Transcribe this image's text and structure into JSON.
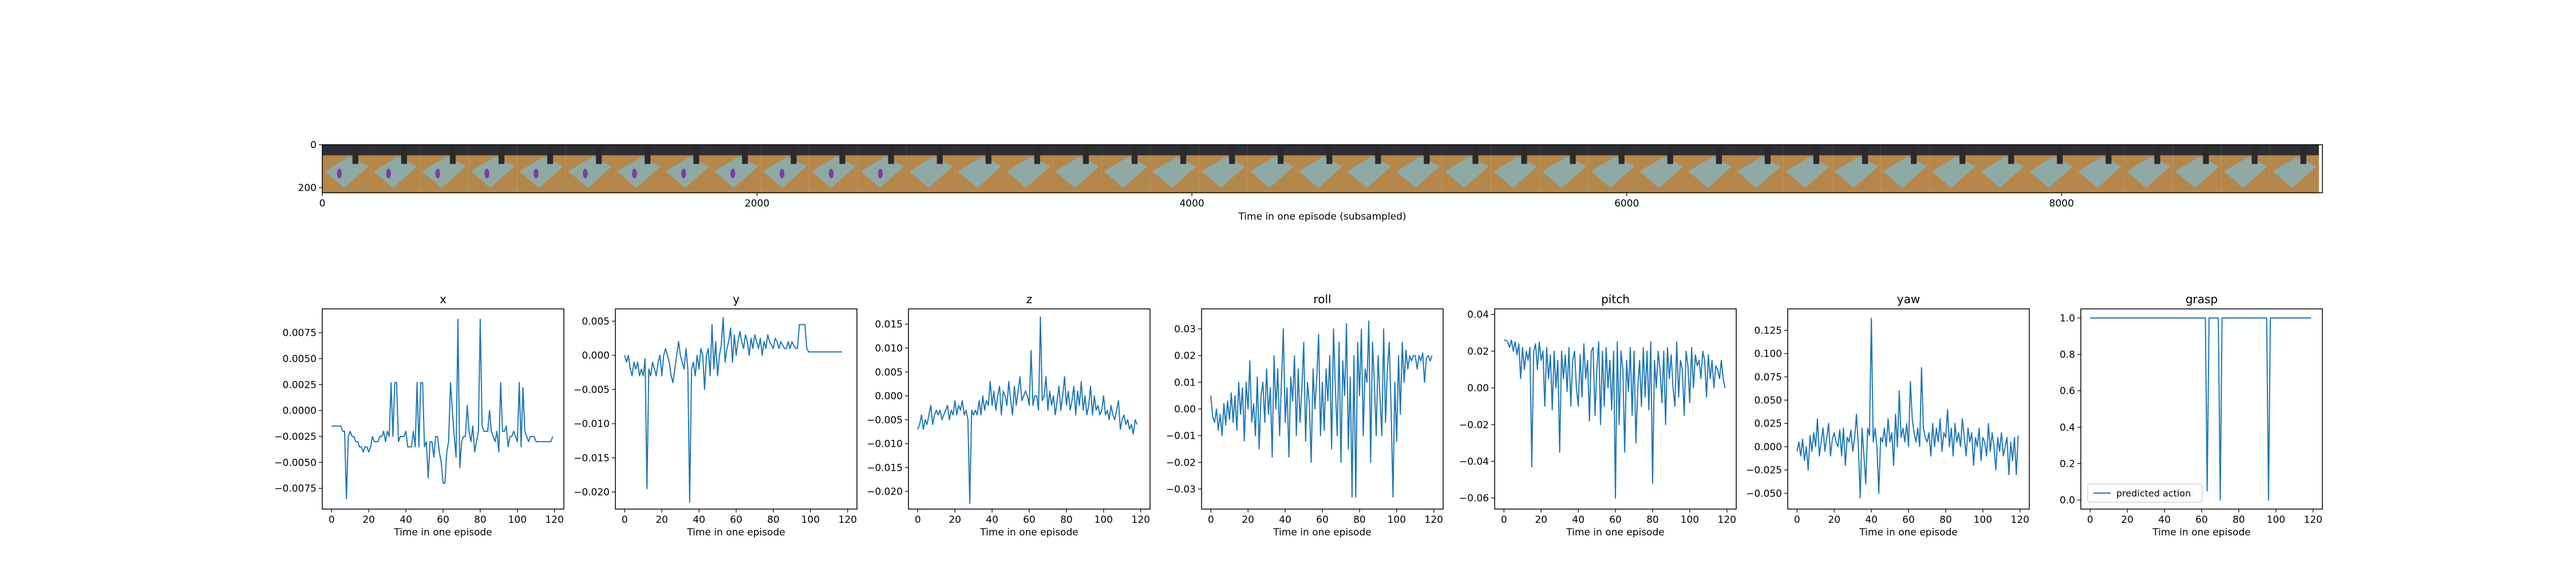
{
  "filmstrip": {
    "xlabel": "Time in one episode (subsampled)",
    "xlim": [
      0,
      9200
    ],
    "ylim": [
      0,
      224
    ],
    "x_ticks": [
      "0",
      "2000",
      "4000",
      "6000",
      "8000"
    ],
    "x_tick_values": [
      0,
      2000,
      4000,
      6000,
      8000
    ],
    "y_ticks": [
      "0",
      "200"
    ],
    "y_tick_values": [
      0,
      200
    ],
    "frame_count": 41,
    "frame_width": 224,
    "colors": {
      "table": "#b5874b",
      "cloth": "#8fa9a4",
      "background": "#2e2e33",
      "object": "#7a3fa0",
      "robot": "#2a2a2a"
    }
  },
  "chart_data": [
    {
      "type": "line",
      "title": "x",
      "xlabel": "Time in one episode",
      "xlim": [
        -5,
        125
      ],
      "ylim": [
        -0.0095,
        0.0098
      ],
      "x_ticks": [
        0,
        20,
        40,
        60,
        80,
        100,
        120
      ],
      "y_ticks": [
        -0.0075,
        -0.005,
        -0.0025,
        0.0,
        0.0025,
        0.005,
        0.0075
      ],
      "y_tick_labels": [
        "−0.0075",
        "−0.0050",
        "−0.0025",
        "0.0000",
        "0.0025",
        "0.0050",
        "0.0075"
      ],
      "series_color": "#1f77b4",
      "values": [
        -0.0015,
        -0.0015,
        -0.0015,
        -0.0015,
        -0.0015,
        -0.0015,
        -0.002,
        -0.002,
        -0.0085,
        -0.0025,
        -0.002,
        -0.0025,
        -0.0025,
        -0.003,
        -0.003,
        -0.0035,
        -0.0035,
        -0.004,
        -0.0035,
        -0.0035,
        -0.004,
        -0.0035,
        -0.0025,
        -0.003,
        -0.003,
        -0.003,
        -0.0025,
        -0.0025,
        -0.002,
        -0.003,
        -0.002,
        -0.0025,
        0.0027,
        -0.0025,
        0.0027,
        0.0027,
        -0.003,
        -0.0025,
        -0.0025,
        -0.0025,
        -0.002,
        -0.0035,
        -0.0035,
        -0.0035,
        -0.002,
        -0.0035,
        0.0027,
        -0.0035,
        0.0027,
        0.0027,
        -0.0035,
        -0.003,
        -0.0065,
        -0.003,
        -0.003,
        -0.0045,
        -0.0025,
        -0.0025,
        -0.004,
        -0.005,
        -0.007,
        -0.007,
        -0.004,
        -0.003,
        0.0027,
        0.0,
        -0.0025,
        -0.0045,
        0.0088,
        -0.0055,
        -0.003,
        -0.0025,
        -0.0025,
        0.0005,
        -0.002,
        -0.003,
        -0.0015,
        -0.004,
        -0.003,
        -0.002,
        0.0088,
        -0.0015,
        -0.002,
        -0.002,
        -0.002,
        0.0,
        -0.002,
        -0.0025,
        -0.003,
        -0.002,
        -0.004,
        0.0027,
        -0.002,
        -0.002,
        -0.0015,
        -0.0035,
        -0.0025,
        -0.0025,
        -0.002,
        -0.0025,
        -0.003,
        0.0027,
        -0.0035,
        0.0022,
        -0.002,
        -0.0025,
        -0.003,
        -0.0025,
        -0.0025,
        -0.0025,
        -0.003,
        -0.003,
        -0.003,
        -0.003,
        -0.003,
        -0.003,
        -0.003,
        -0.003,
        -0.003,
        -0.0025
      ]
    },
    {
      "type": "line",
      "title": "y",
      "xlabel": "Time in one episode",
      "xlim": [
        -5,
        125
      ],
      "ylim": [
        -0.0225,
        0.0068
      ],
      "x_ticks": [
        0,
        20,
        40,
        60,
        80,
        100,
        120
      ],
      "y_ticks": [
        -0.02,
        -0.015,
        -0.01,
        -0.005,
        0.0,
        0.005
      ],
      "y_tick_labels": [
        "−0.020",
        "−0.015",
        "−0.010",
        "−0.005",
        "0.000",
        "0.005"
      ],
      "series_color": "#1f77b4",
      "values": [
        0.0,
        -0.001,
        0.0,
        -0.002,
        -0.003,
        -0.001,
        -0.002,
        -0.001,
        -0.003,
        -0.002,
        -0.003,
        -0.0005,
        -0.0195,
        -0.002,
        -0.003,
        -0.001,
        -0.002,
        -0.003,
        -0.001,
        0.0,
        -0.003,
        0.0,
        0.001,
        0.0,
        -0.001,
        -0.003,
        -0.004,
        -0.002,
        0.0,
        0.002,
        0.0,
        -0.001,
        -0.002,
        0.001,
        -0.002,
        -0.0215,
        -0.002,
        -0.001,
        -0.003,
        0.0,
        -0.002,
        0.001,
        0.0,
        -0.005,
        0.0,
        0.001,
        -0.003,
        0.0045,
        -0.002,
        0.002,
        -0.003,
        0.0,
        0.0015,
        0.0055,
        -0.001,
        0.001,
        0.002,
        0.004,
        -0.001,
        0.003,
        0.0,
        0.002,
        0.0035,
        0.002,
        0.001,
        0.003,
        0.002,
        0.0,
        0.0025,
        0.001,
        0.003,
        0.002,
        0.001,
        0.0025,
        0.0,
        0.002,
        0.001,
        0.003,
        0.002,
        0.0015,
        0.001,
        0.0025,
        0.002,
        0.001,
        0.002,
        0.0015,
        0.001,
        0.001,
        0.002,
        0.001,
        0.002,
        0.0015,
        0.001,
        0.001,
        0.0045,
        0.0045,
        0.0045,
        0.0045,
        0.001,
        0.0005,
        0.0005,
        0.0005,
        0.0005,
        0.0005,
        0.0005,
        0.0005,
        0.0005,
        0.0005,
        0.0005,
        0.0005,
        0.0005,
        0.0005,
        0.0005,
        0.0005,
        0.0005,
        0.0005,
        0.0005,
        0.0005
      ]
    },
    {
      "type": "line",
      "title": "z",
      "xlabel": "Time in one episode",
      "xlim": [
        -5,
        125
      ],
      "ylim": [
        -0.0237,
        0.0182
      ],
      "x_ticks": [
        0,
        20,
        40,
        60,
        80,
        100,
        120
      ],
      "y_ticks": [
        -0.02,
        -0.015,
        -0.01,
        -0.005,
        0.0,
        0.005,
        0.01,
        0.015
      ],
      "y_tick_labels": [
        "−0.020",
        "−0.015",
        "−0.010",
        "−0.005",
        "0.000",
        "0.005",
        "0.010",
        "0.015"
      ],
      "series_color": "#1f77b4",
      "values": [
        -0.007,
        -0.006,
        -0.004,
        -0.007,
        -0.005,
        -0.006,
        -0.004,
        -0.002,
        -0.006,
        -0.004,
        -0.003,
        -0.004,
        -0.003,
        -0.005,
        -0.004,
        -0.003,
        -0.002,
        -0.005,
        -0.003,
        -0.004,
        -0.001,
        -0.004,
        -0.002,
        -0.003,
        -0.001,
        -0.004,
        -0.003,
        -0.005,
        -0.0225,
        -0.003,
        -0.004,
        -0.003,
        -0.004,
        -0.001,
        -0.004,
        0.0,
        -0.003,
        -0.001,
        -0.002,
        0.003,
        -0.002,
        0.001,
        -0.003,
        0.0,
        0.002,
        -0.004,
        0.001,
        0.0,
        -0.002,
        0.003,
        -0.001,
        -0.004,
        0.002,
        -0.002,
        0.001,
        0.004,
        -0.001,
        0.0,
        0.001,
        0.0,
        -0.002,
        0.0095,
        -0.002,
        0.0,
        0.0,
        -0.003,
        0.0165,
        -0.001,
        0.0,
        0.004,
        -0.003,
        0.001,
        -0.002,
        0.0,
        -0.004,
        -0.001,
        0.002,
        -0.003,
        0.0,
        0.004,
        -0.002,
        0.001,
        -0.003,
        -0.001,
        0.002,
        -0.004,
        0.001,
        -0.002,
        0.003,
        -0.003,
        0.0,
        -0.004,
        -0.002,
        0.002,
        -0.004,
        0.0,
        -0.003,
        -0.002,
        -0.004,
        -0.003,
        0.0,
        -0.004,
        -0.003,
        -0.005,
        -0.002,
        -0.004,
        -0.005,
        -0.003,
        -0.001,
        -0.007,
        -0.005,
        -0.004,
        -0.006,
        -0.005,
        -0.007,
        -0.006,
        -0.008,
        -0.005,
        -0.006
      ]
    },
    {
      "type": "line",
      "title": "roll",
      "xlabel": "Time in one episode",
      "xlim": [
        -5,
        125
      ],
      "ylim": [
        -0.0375,
        0.0375
      ],
      "x_ticks": [
        0,
        20,
        40,
        60,
        80,
        100,
        120
      ],
      "y_ticks": [
        -0.03,
        -0.02,
        -0.01,
        0.0,
        0.01,
        0.02,
        0.03
      ],
      "y_tick_labels": [
        "−0.03",
        "−0.02",
        "−0.01",
        "0.00",
        "0.01",
        "0.02",
        "0.03"
      ],
      "series_color": "#1f77b4",
      "values": [
        0.005,
        -0.003,
        -0.005,
        0.0,
        -0.008,
        -0.002,
        -0.01,
        0.002,
        -0.006,
        0.003,
        -0.004,
        0.006,
        -0.005,
        0.005,
        -0.008,
        0.01,
        -0.002,
        0.008,
        -0.012,
        0.01,
        0.0,
        0.018,
        -0.005,
        0.002,
        -0.01,
        0.012,
        -0.015,
        0.005,
        0.01,
        -0.005,
        0.015,
        -0.002,
        0.008,
        -0.018,
        0.02,
        0.0,
        0.015,
        -0.01,
        0.01,
        0.03,
        -0.005,
        0.008,
        -0.018,
        0.012,
        0.003,
        0.02,
        -0.01,
        0.015,
        -0.005,
        0.008,
        0.025,
        -0.012,
        0.01,
        0.002,
        -0.02,
        0.015,
        0.0,
        0.012,
        0.028,
        -0.01,
        0.01,
        -0.008,
        0.015,
        0.003,
        0.02,
        -0.015,
        0.03,
        0.008,
        -0.01,
        0.025,
        -0.02,
        0.018,
        0.005,
        0.032,
        -0.015,
        0.012,
        -0.033,
        0.02,
        -0.033,
        0.025,
        0.005,
        0.03,
        -0.01,
        0.015,
        0.01,
        0.033,
        -0.02,
        0.025,
        0.01,
        -0.01,
        0.02,
        0.005,
        -0.01,
        0.03,
        -0.005,
        0.015,
        0.025,
        0.0,
        -0.033,
        0.01,
        -0.012,
        0.02,
        -0.002,
        0.025,
        0.01,
        0.022,
        0.015,
        0.02,
        0.018,
        0.02,
        0.02,
        0.015,
        0.02,
        0.018,
        0.021,
        0.01,
        0.019,
        0.02,
        0.018,
        0.02
      ]
    },
    {
      "type": "line",
      "title": "pitch",
      "xlabel": "Time in one episode",
      "xlim": [
        -5,
        125
      ],
      "ylim": [
        -0.066,
        0.043
      ],
      "x_ticks": [
        0,
        20,
        40,
        60,
        80,
        100,
        120
      ],
      "y_ticks": [
        -0.06,
        -0.04,
        -0.02,
        0.0,
        0.02,
        0.04
      ],
      "y_tick_labels": [
        "−0.06",
        "−0.04",
        "−0.02",
        "0.00",
        "0.02",
        "0.04"
      ],
      "series_color": "#1f77b4",
      "values": [
        0.026,
        0.026,
        0.025,
        0.022,
        0.026,
        0.02,
        0.025,
        0.018,
        0.024,
        0.005,
        0.022,
        0.01,
        0.02,
        0.015,
        0.022,
        -0.043,
        0.02,
        0.024,
        0.01,
        0.025,
        0.015,
        0.02,
        -0.01,
        0.022,
        0.005,
        0.018,
        -0.012,
        0.02,
        0.0,
        0.015,
        -0.035,
        0.02,
        0.005,
        0.018,
        -0.002,
        0.022,
        -0.01,
        0.015,
        0.02,
        0.0,
        -0.01,
        0.018,
        -0.005,
        0.024,
        0.005,
        0.015,
        -0.018,
        0.02,
        0.022,
        -0.015,
        0.01,
        0.025,
        -0.02,
        0.02,
        -0.01,
        0.022,
        0.0,
        0.015,
        -0.012,
        0.02,
        -0.06,
        0.025,
        -0.02,
        0.02,
        0.01,
        -0.035,
        0.015,
        -0.002,
        0.022,
        -0.015,
        0.02,
        -0.03,
        0.0,
        0.015,
        -0.01,
        0.022,
        -0.005,
        0.02,
        -0.012,
        0.025,
        -0.052,
        0.015,
        0.0,
        0.02,
        0.01,
        -0.008,
        0.02,
        -0.02,
        0.022,
        0.005,
        0.018,
        0.0,
        -0.01,
        0.025,
        -0.005,
        0.015,
        0.01,
        -0.015,
        0.02,
        0.012,
        -0.008,
        0.022,
        0.0,
        0.018,
        0.012,
        0.015,
        0.005,
        0.02,
        0.015,
        -0.005,
        0.018,
        0.005,
        0.015,
        0.0,
        0.012,
        0.01,
        0.005,
        0.015,
        0.005,
        0.0
      ]
    },
    {
      "type": "line",
      "title": "yaw",
      "xlabel": "Time in one episode",
      "xlim": [
        -5,
        125
      ],
      "ylim": [
        -0.067,
        0.148
      ],
      "x_ticks": [
        0,
        20,
        40,
        60,
        80,
        100,
        120
      ],
      "y_ticks": [
        -0.05,
        -0.025,
        0.0,
        0.025,
        0.05,
        0.075,
        0.1,
        0.125
      ],
      "y_tick_labels": [
        "−0.050",
        "−0.025",
        "0.000",
        "0.025",
        "0.050",
        "0.075",
        "0.100",
        "0.125"
      ],
      "series_color": "#1f77b4",
      "values": [
        -0.005,
        0.005,
        -0.01,
        0.008,
        -0.015,
        0.0,
        -0.025,
        0.012,
        -0.005,
        0.015,
        0.0,
        0.03,
        -0.01,
        0.005,
        0.02,
        -0.005,
        0.01,
        0.025,
        -0.01,
        0.008,
        0.015,
        0.005,
        0.0,
        0.018,
        -0.01,
        0.02,
        -0.02,
        0.01,
        0.005,
        0.018,
        -0.005,
        0.01,
        0.035,
        0.0,
        -0.055,
        0.02,
        -0.01,
        -0.04,
        0.02,
        0.012,
        0.138,
        0.005,
        0.02,
        0.0,
        -0.05,
        0.01,
        0.005,
        0.02,
        0.0,
        0.03,
        0.005,
        0.015,
        -0.02,
        0.035,
        0.0,
        0.06,
        0.01,
        0.02,
        0.005,
        0.025,
        0.0,
        0.07,
        0.03,
        0.015,
        0.005,
        0.02,
        0.0,
        0.085,
        0.02,
        0.01,
        0.005,
        0.015,
        -0.01,
        0.025,
        0.0,
        0.02,
        0.005,
        0.03,
        -0.005,
        0.015,
        0.01,
        0.04,
        0.0,
        0.02,
        -0.01,
        0.025,
        0.005,
        0.015,
        0.0,
        0.03,
        0.01,
        -0.01,
        0.02,
        0.005,
        0.015,
        -0.02,
        0.01,
        0.0,
        0.02,
        -0.015,
        0.01,
        0.005,
        -0.01,
        0.025,
        -0.005,
        0.015,
        0.0,
        -0.025,
        0.01,
        -0.005,
        0.015,
        -0.01,
        0.0,
        0.01,
        -0.03,
        0.005,
        -0.015,
        0.01,
        -0.03,
        0.012
      ]
    },
    {
      "type": "line",
      "title": "grasp",
      "xlabel": "Time in one episode",
      "xlim": [
        -5,
        125
      ],
      "ylim": [
        -0.05,
        1.05
      ],
      "x_ticks": [
        0,
        20,
        40,
        60,
        80,
        100,
        120
      ],
      "y_ticks": [
        0.0,
        0.2,
        0.4,
        0.6,
        0.8,
        1.0
      ],
      "y_tick_labels": [
        "0.0",
        "0.2",
        "0.4",
        "0.6",
        "0.8",
        "1.0"
      ],
      "series_color": "#1f77b4",
      "legend": {
        "label": "predicted action",
        "position": "lower-left"
      },
      "values": [
        1,
        1,
        1,
        1,
        1,
        1,
        1,
        1,
        1,
        1,
        1,
        1,
        1,
        1,
        1,
        1,
        1,
        1,
        1,
        1,
        1,
        1,
        1,
        1,
        1,
        1,
        1,
        1,
        1,
        1,
        1,
        1,
        1,
        1,
        1,
        1,
        1,
        1,
        1,
        1,
        1,
        1,
        1,
        1,
        1,
        1,
        1,
        1,
        1,
        1,
        1,
        1,
        1,
        1,
        1,
        1,
        1,
        1,
        1,
        1,
        1,
        1,
        1,
        0.05,
        1,
        1,
        1,
        1,
        1,
        1,
        0.0,
        1,
        1,
        1,
        1,
        1,
        1,
        1,
        1,
        1,
        1,
        1,
        1,
        1,
        1,
        1,
        1,
        1,
        1,
        1,
        1,
        1,
        1,
        1,
        1,
        1,
        0.0,
        1,
        1,
        1,
        1,
        1,
        1,
        1,
        1,
        1,
        1,
        1,
        1,
        1,
        1,
        1,
        1,
        1,
        1,
        1,
        1,
        1,
        1,
        1
      ]
    }
  ]
}
